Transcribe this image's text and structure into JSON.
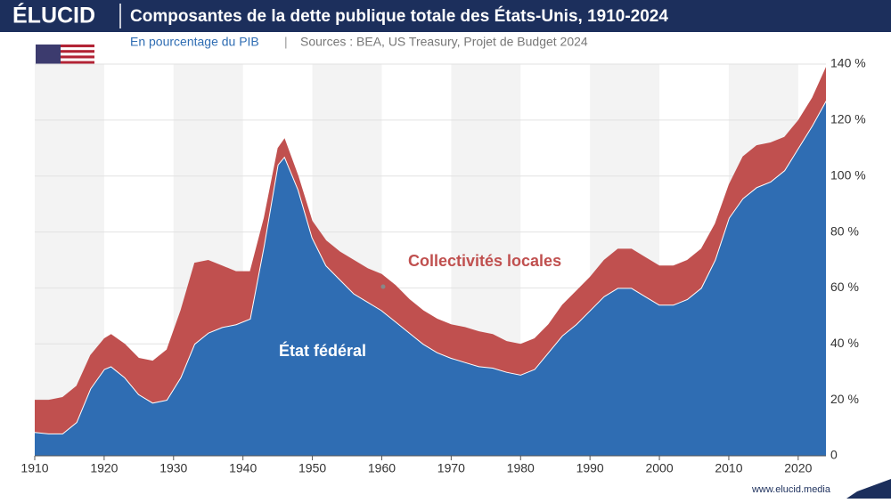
{
  "chart_data": {
    "type": "stacked_area",
    "logo": "ÉLUCID",
    "title": "Composantes de la dette publique totale des États-Unis, 1910-2024",
    "subtitle": "En pourcentage du PIB",
    "source": "Sources : BEA, US Treasury, Projet de Budget 2024",
    "footer": "www.elucid.media",
    "x": [
      1910,
      1912,
      1914,
      1916,
      1918,
      1920,
      1921,
      1923,
      1925,
      1927,
      1929,
      1931,
      1933,
      1935,
      1937,
      1939,
      1941,
      1943,
      1945,
      1946,
      1948,
      1950,
      1952,
      1954,
      1956,
      1958,
      1960,
      1962,
      1964,
      1966,
      1968,
      1970,
      1972,
      1974,
      1976,
      1978,
      1980,
      1982,
      1984,
      1986,
      1988,
      1990,
      1992,
      1994,
      1996,
      1998,
      2000,
      2002,
      2004,
      2006,
      2008,
      2010,
      2012,
      2014,
      2016,
      2018,
      2020,
      2022,
      2024
    ],
    "series": [
      {
        "name": "État fédéral",
        "color": "#2f6db3",
        "values": [
          8.5,
          8,
          8,
          12,
          24,
          31,
          32,
          28,
          22,
          19,
          20,
          28,
          40,
          44,
          46,
          47,
          49,
          75,
          104,
          107,
          95,
          78,
          68,
          63,
          58,
          55,
          52,
          48,
          44,
          40,
          37,
          35,
          33.5,
          32,
          31.5,
          30,
          29,
          31,
          37,
          43,
          47,
          52,
          57,
          60,
          60,
          57,
          54,
          54,
          56,
          60,
          70,
          85,
          92,
          96,
          98,
          102,
          110,
          118,
          127
        ]
      },
      {
        "name": "Collectivités locales",
        "color": "#c0504f",
        "values": [
          11.5,
          12,
          13,
          13,
          12,
          11,
          11.5,
          12,
          13,
          15,
          18,
          24,
          29,
          26,
          22,
          19,
          17,
          10,
          6,
          6.5,
          5,
          6,
          9,
          10,
          12,
          12,
          13,
          13,
          12,
          12,
          12,
          12,
          12.5,
          12.5,
          12,
          11,
          11,
          11,
          10,
          11,
          12,
          12,
          13,
          14,
          14,
          14,
          14,
          14,
          14,
          14,
          13,
          12,
          15,
          15,
          14,
          12,
          10,
          10,
          12
        ]
      }
    ],
    "xlim": [
      1910,
      2024
    ],
    "xticks": [
      1910,
      1920,
      1930,
      1940,
      1950,
      1960,
      1970,
      1980,
      1990,
      2000,
      2010,
      2020
    ],
    "ylim": [
      0,
      140
    ],
    "yticks": [
      0,
      {
        "value": 20,
        "label": "20 %"
      },
      {
        "value": 40,
        "label": "40 %"
      },
      {
        "value": 60,
        "label": "60 %"
      },
      {
        "value": 80,
        "label": "80 %"
      },
      {
        "value": 100,
        "label": "100 %"
      },
      {
        "value": 120,
        "label": "120 %"
      },
      {
        "value": 140,
        "label": "140 %"
      }
    ],
    "grid": true
  }
}
